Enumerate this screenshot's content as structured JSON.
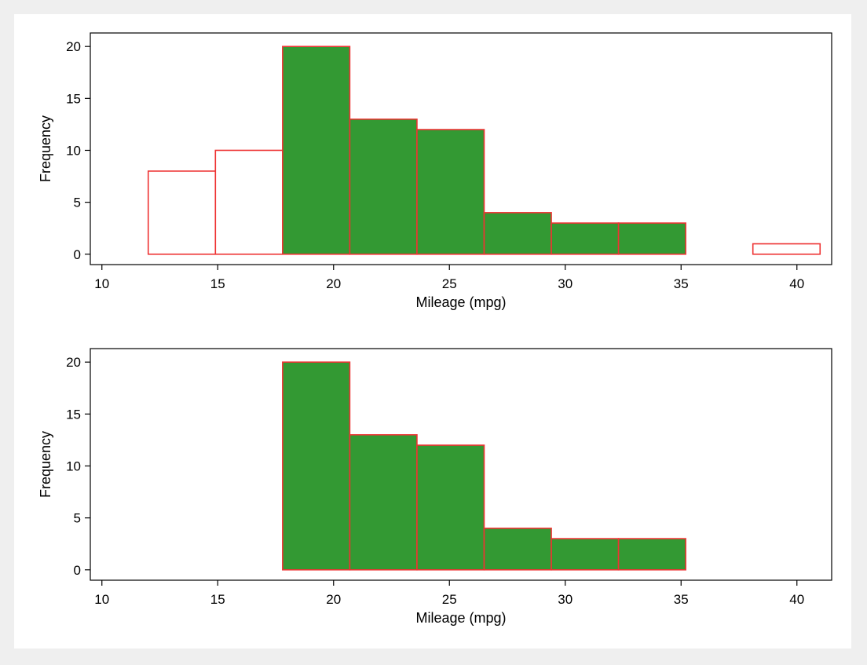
{
  "colors": {
    "background": "#efefef",
    "panel": "#ffffff",
    "bar_fill": "#339933",
    "bar_edge": "#ee3333",
    "axis": "#000000"
  },
  "chart_data": [
    {
      "type": "bar",
      "xlabel": "Mileage (mpg)",
      "ylabel": "Frequency",
      "xlim": [
        9.5,
        41.5
      ],
      "ylim": [
        -1.0,
        21.3
      ],
      "xticks": [
        10,
        15,
        20,
        25,
        30,
        35,
        40
      ],
      "yticks": [
        0,
        5,
        10,
        15,
        20
      ],
      "grid": false,
      "legend": "none",
      "series": [
        {
          "style": "outline",
          "bins": [
            {
              "x0": 12.0,
              "x1": 14.9,
              "value": 8
            },
            {
              "x0": 14.9,
              "x1": 17.8,
              "value": 10
            },
            {
              "x0": 38.1,
              "x1": 41.0,
              "value": 1
            }
          ]
        },
        {
          "style": "filled",
          "bins": [
            {
              "x0": 17.8,
              "x1": 20.7,
              "value": 20
            },
            {
              "x0": 20.7,
              "x1": 23.6,
              "value": 13
            },
            {
              "x0": 23.6,
              "x1": 26.5,
              "value": 12
            },
            {
              "x0": 26.5,
              "x1": 29.4,
              "value": 4
            },
            {
              "x0": 29.4,
              "x1": 32.3,
              "value": 3
            },
            {
              "x0": 32.3,
              "x1": 35.2,
              "value": 3
            }
          ]
        }
      ]
    },
    {
      "type": "bar",
      "xlabel": "Mileage (mpg)",
      "ylabel": "Frequency",
      "xlim": [
        9.5,
        41.5
      ],
      "ylim": [
        -1.0,
        21.3
      ],
      "xticks": [
        10,
        15,
        20,
        25,
        30,
        35,
        40
      ],
      "yticks": [
        0,
        5,
        10,
        15,
        20
      ],
      "grid": false,
      "legend": "none",
      "series": [
        {
          "style": "filled",
          "bins": [
            {
              "x0": 17.8,
              "x1": 20.7,
              "value": 20
            },
            {
              "x0": 20.7,
              "x1": 23.6,
              "value": 13
            },
            {
              "x0": 23.6,
              "x1": 26.5,
              "value": 12
            },
            {
              "x0": 26.5,
              "x1": 29.4,
              "value": 4
            },
            {
              "x0": 29.4,
              "x1": 32.3,
              "value": 3
            },
            {
              "x0": 32.3,
              "x1": 35.2,
              "value": 3
            }
          ]
        }
      ]
    }
  ]
}
